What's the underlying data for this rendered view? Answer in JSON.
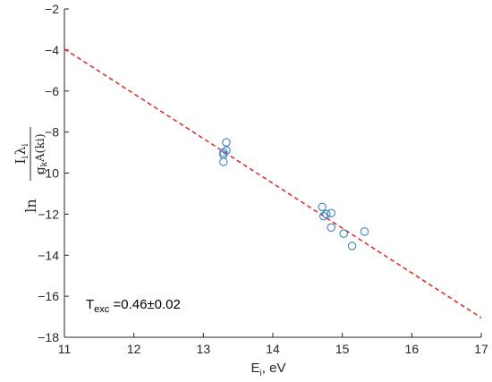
{
  "chart_data": {
    "type": "scatter",
    "title": "",
    "xlabel": {
      "main": "E",
      "sub": "i",
      "suffix": ", eV"
    },
    "ylabel": {
      "prefix": "ln",
      "num_main": "I",
      "num_sub": "i",
      "num_lambda": "λ",
      "num_lambda_sub": "i",
      "den_main": "g",
      "den_sub": "k",
      "den_rest": "A(ki)"
    },
    "xlim": [
      11,
      17
    ],
    "ylim": [
      -18,
      -2
    ],
    "xticks": [
      11,
      12,
      13,
      14,
      15,
      16,
      17
    ],
    "yticks": [
      -18,
      -16,
      -14,
      -12,
      -10,
      -8,
      -6,
      -4,
      -2
    ],
    "grid": false,
    "series": [
      {
        "kind": "scatter",
        "marker": "circle-open",
        "color": "#3d7fc4",
        "points": [
          {
            "x": 13.33,
            "y": -8.5
          },
          {
            "x": 13.33,
            "y": -8.9
          },
          {
            "x": 13.29,
            "y": -9.0
          },
          {
            "x": 13.29,
            "y": -9.1
          },
          {
            "x": 13.29,
            "y": -9.45
          },
          {
            "x": 14.71,
            "y": -11.65
          },
          {
            "x": 14.77,
            "y": -12.0
          },
          {
            "x": 14.73,
            "y": -12.1
          },
          {
            "x": 14.84,
            "y": -11.95
          },
          {
            "x": 14.84,
            "y": -12.65
          },
          {
            "x": 15.02,
            "y": -12.95
          },
          {
            "x": 15.32,
            "y": -12.85
          },
          {
            "x": 15.14,
            "y": -13.55
          }
        ]
      },
      {
        "kind": "line",
        "style": "dashed",
        "color": "#e0312f",
        "points": [
          {
            "x": 11,
            "y": -3.95
          },
          {
            "x": 17,
            "y": -17.05
          }
        ]
      }
    ],
    "annotation": {
      "main": "T",
      "sub": "exc",
      "rest": " =0.46±0.02"
    }
  }
}
